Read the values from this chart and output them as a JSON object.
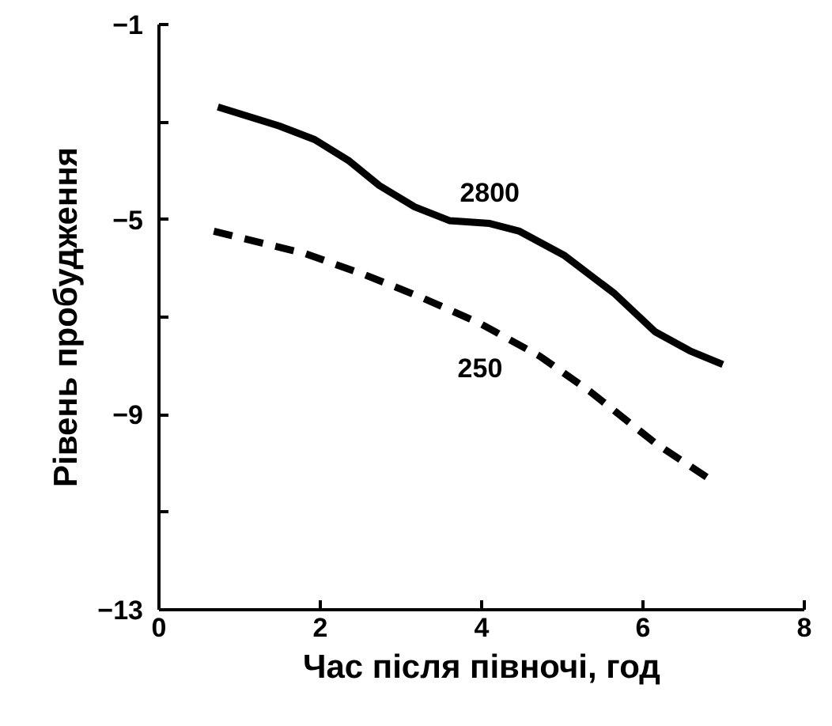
{
  "chart_data": {
    "type": "line",
    "xlabel": "Час після півночі, год",
    "ylabel": "Рівень пробудження",
    "xlim": [
      0,
      8
    ],
    "xticks": [
      0,
      2,
      4,
      6,
      8
    ],
    "ylim": [
      -13,
      -1
    ],
    "yticks": [
      -1,
      {
        "value": -3,
        "label": null
      },
      -5,
      {
        "value": -7,
        "label": null
      },
      -9,
      {
        "value": -11,
        "label": null
      },
      -13
    ],
    "grid": false,
    "marker": "none",
    "series": [
      {
        "name": "2800",
        "color": "#000000",
        "line_style": "solid",
        "x": [
          0.73,
          1.49,
          1.93,
          2.36,
          2.73,
          3.17,
          3.6,
          4.1,
          4.47,
          5.03,
          5.65,
          6.15,
          6.58,
          6.99
        ],
        "values": [
          -2.69,
          -3.08,
          -3.36,
          -3.8,
          -4.3,
          -4.74,
          -5.02,
          -5.08,
          -5.24,
          -5.74,
          -6.52,
          -7.3,
          -7.69,
          -7.97
        ]
      },
      {
        "name": "250",
        "color": "#000000",
        "line_style": "dashed",
        "x": [
          0.68,
          1.8,
          2.55,
          3.23,
          3.98,
          4.72,
          5.34,
          6.15,
          6.86
        ],
        "values": [
          -5.24,
          -5.69,
          -6.13,
          -6.58,
          -7.13,
          -7.8,
          -8.52,
          -9.58,
          -10.36
        ]
      }
    ]
  }
}
